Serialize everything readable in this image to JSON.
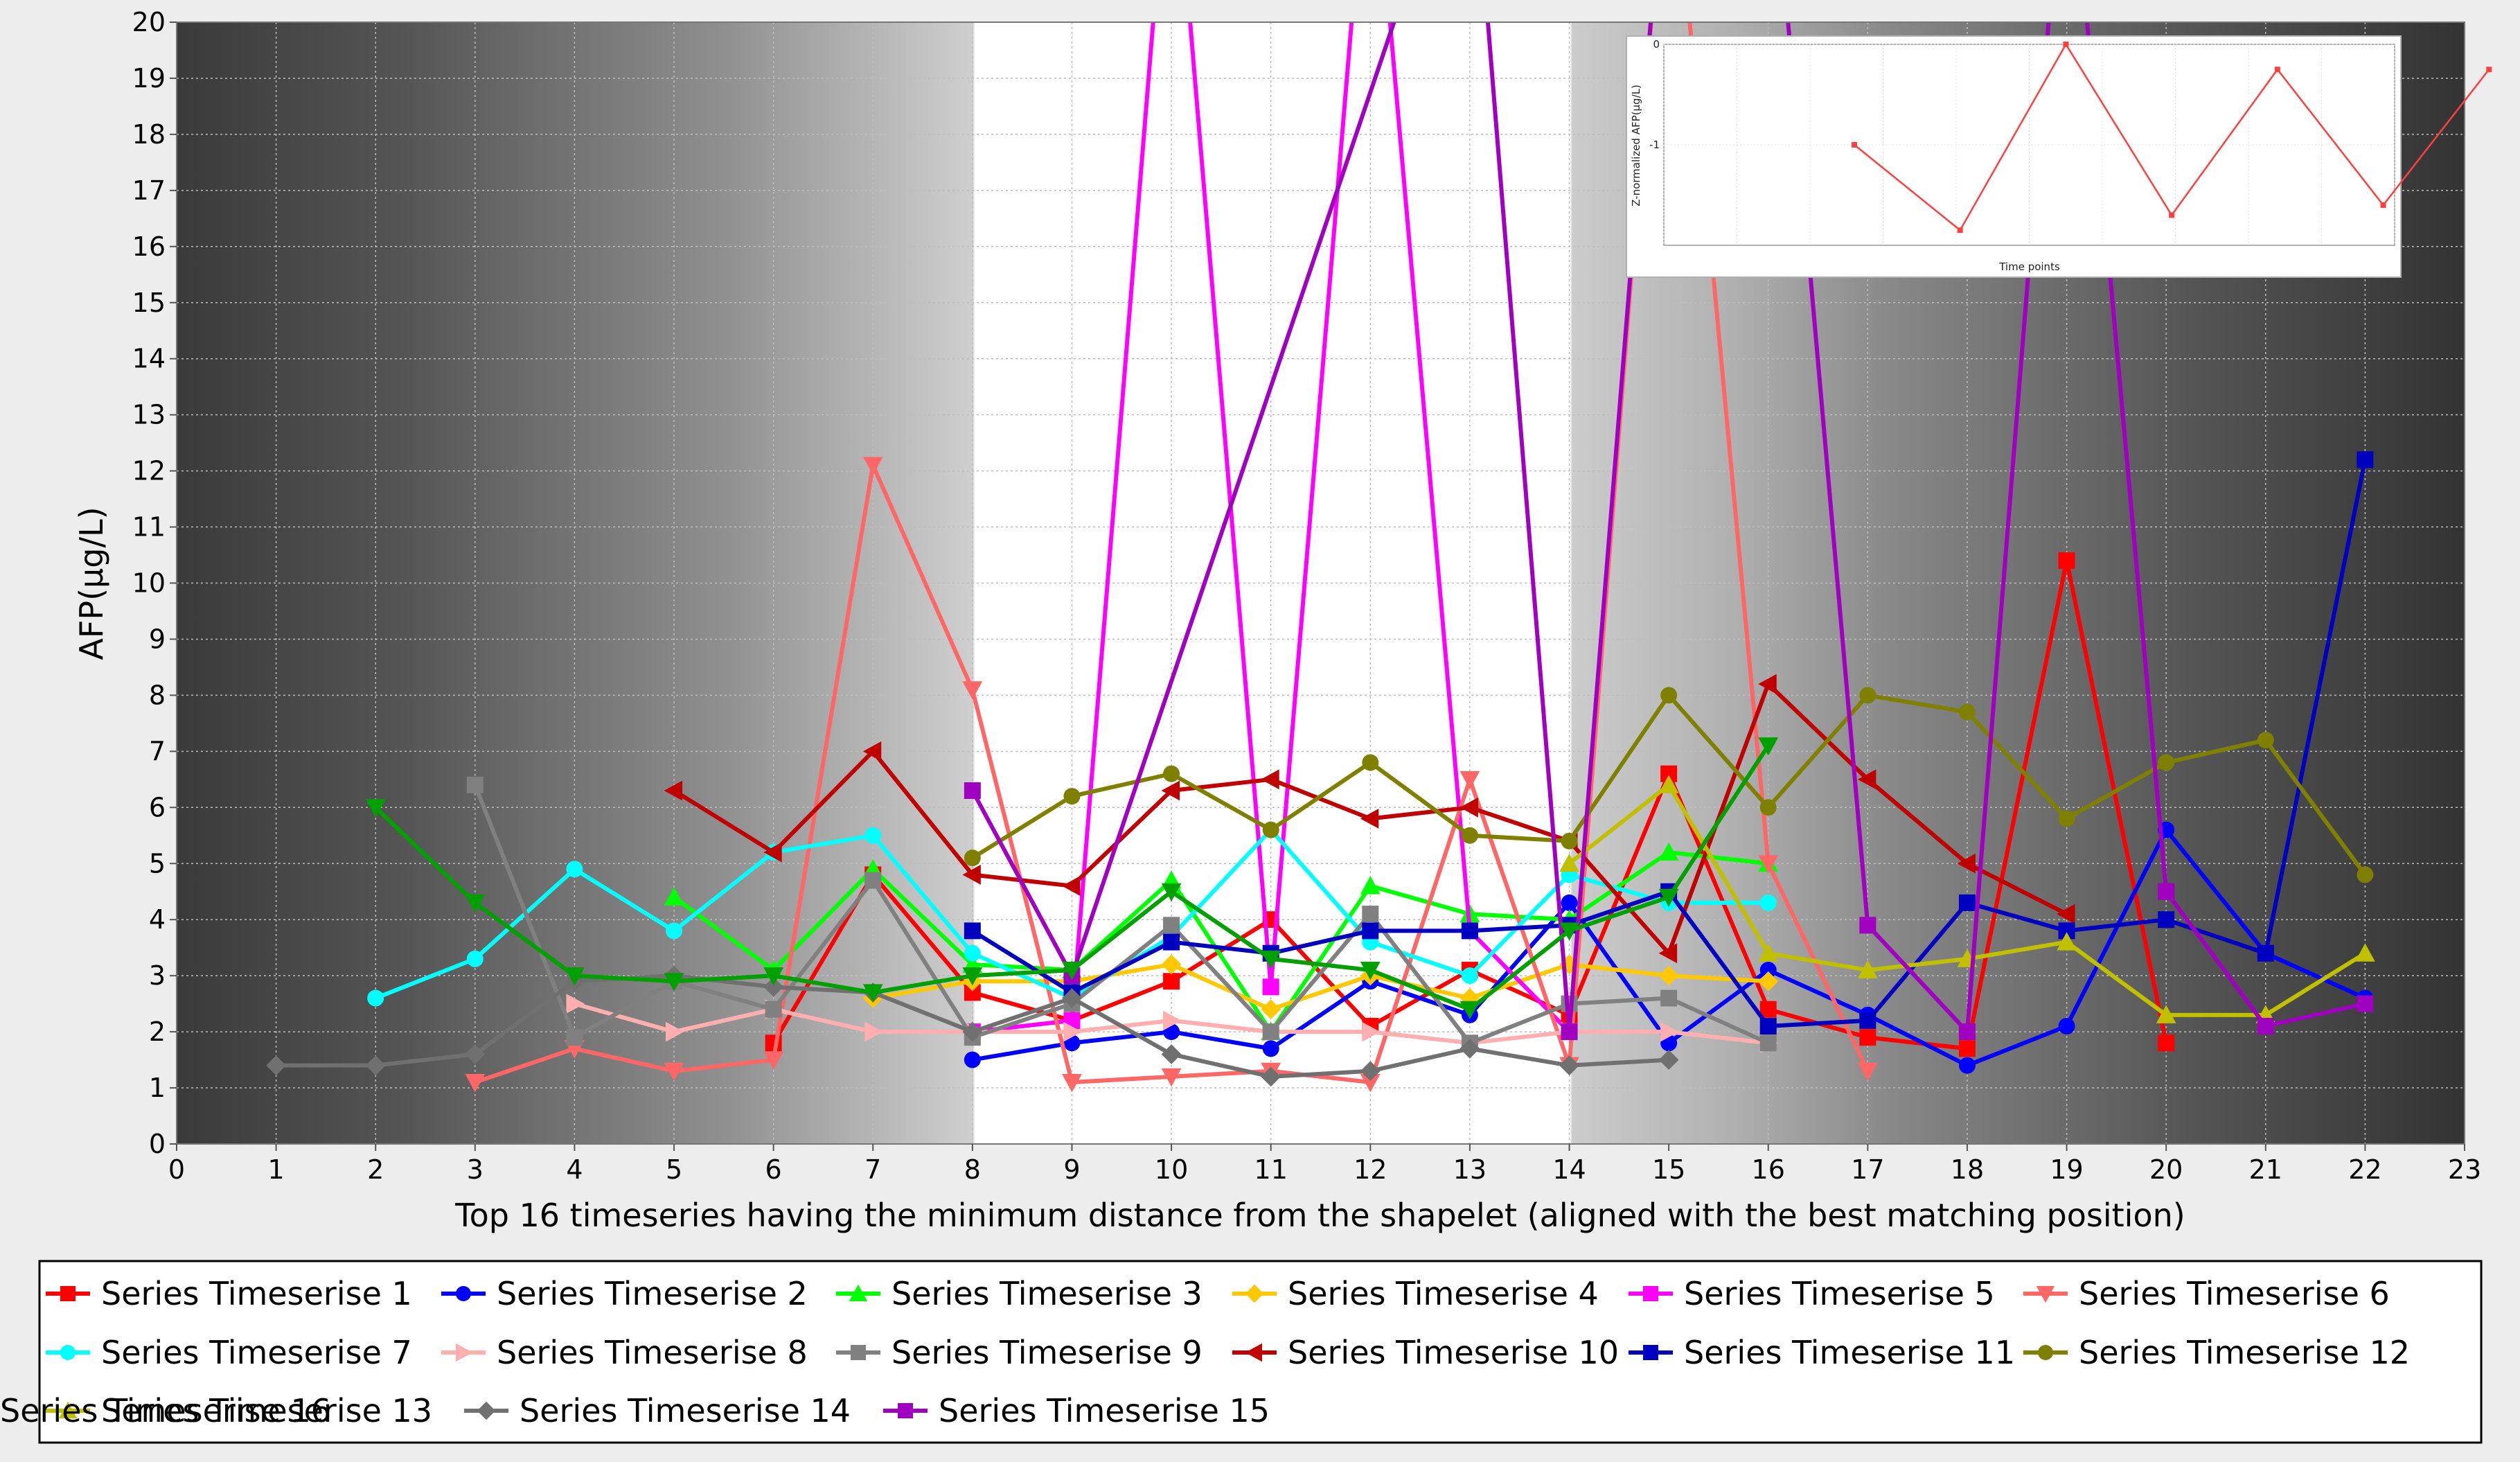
{
  "chart_data": [
    {
      "type": "line",
      "title": "",
      "xlabel": "Top 16 timeseries having the minimum distance from the shapelet (aligned with the best matching position)",
      "ylabel": "AFP(µg/L)",
      "xlim": [
        0,
        23
      ],
      "ylim": [
        0,
        20
      ],
      "x_ticks": [
        "0",
        "1",
        "2",
        "3",
        "4",
        "5",
        "6",
        "7",
        "8",
        "9",
        "10",
        "11",
        "12",
        "13",
        "14",
        "15",
        "16",
        "17",
        "18",
        "19",
        "20",
        "21",
        "22",
        "23"
      ],
      "y_ticks": [
        "0",
        "1",
        "2",
        "3",
        "4",
        "5",
        "6",
        "7",
        "8",
        "9",
        "10",
        "11",
        "12",
        "13",
        "14",
        "15",
        "16",
        "17",
        "18",
        "19",
        "20"
      ],
      "grid": true,
      "highlight_region": [
        8,
        14
      ],
      "legend_position": "bottom",
      "series": [
        {
          "name": "Series Timeserise 1",
          "color": "#ff0000",
          "marker": "square",
          "x": [
            6,
            7,
            8,
            9,
            10,
            11,
            12,
            13,
            14,
            15,
            16,
            17,
            18,
            19,
            20
          ],
          "y": [
            1.8,
            4.8,
            2.7,
            2.2,
            2.9,
            4.0,
            2.1,
            3.1,
            2.3,
            6.6,
            2.4,
            1.9,
            1.7,
            10.4,
            1.8
          ]
        },
        {
          "name": "Series Timeserise 2",
          "color": "#0000ff",
          "marker": "circle",
          "x": [
            8,
            9,
            10,
            11,
            12,
            13,
            14,
            15,
            16,
            17,
            18,
            19,
            20,
            21,
            22
          ],
          "y": [
            1.5,
            1.8,
            2.0,
            1.7,
            2.9,
            2.3,
            4.3,
            1.8,
            3.1,
            2.3,
            1.4,
            2.1,
            5.6,
            3.4,
            2.6
          ]
        },
        {
          "name": "Series Timeserise 3",
          "color": "#00ff00",
          "marker": "triangle-up",
          "x": [
            5,
            6,
            7,
            8,
            9,
            10,
            11,
            12,
            13,
            14,
            15,
            16
          ],
          "y": [
            4.4,
            3.1,
            4.9,
            3.2,
            3.1,
            4.7,
            2.0,
            4.6,
            4.1,
            4.0,
            5.2,
            5.0
          ]
        },
        {
          "name": "Series Timeserise 4",
          "color": "#ffc800",
          "marker": "diamond",
          "x": [
            7,
            8,
            9,
            10,
            11,
            12,
            13,
            14,
            15,
            16
          ],
          "y": [
            2.6,
            2.9,
            2.9,
            3.2,
            2.4,
            3.0,
            2.6,
            3.2,
            3.0,
            2.9
          ]
        },
        {
          "name": "Series Timeserise 5",
          "color": "#ff00ff",
          "marker": "square",
          "x": [
            8,
            9,
            10,
            11,
            12,
            13,
            14
          ],
          "y": [
            2.0,
            2.2,
            24,
            2.8,
            24,
            3.8,
            2.0
          ]
        },
        {
          "name": "Series Timeserise 6",
          "color": "#ff6666",
          "marker": "triangle-down",
          "x": [
            3,
            4,
            5,
            6,
            7,
            8,
            9,
            10,
            11,
            12,
            13,
            14,
            15,
            16,
            17
          ],
          "y": [
            1.1,
            1.7,
            1.3,
            1.5,
            12.1,
            8.1,
            1.1,
            1.2,
            1.3,
            1.1,
            6.5,
            1.4,
            24,
            5.0,
            1.3
          ]
        },
        {
          "name": "Series Timeserise 7",
          "color": "#00ffff",
          "marker": "circle",
          "x": [
            2,
            3,
            4,
            5,
            6,
            7,
            8,
            9,
            10,
            11,
            12,
            13,
            14,
            15,
            16
          ],
          "y": [
            2.6,
            3.3,
            4.9,
            3.8,
            5.2,
            5.5,
            3.4,
            2.6,
            3.7,
            5.6,
            3.6,
            3.0,
            4.8,
            4.3,
            4.3
          ]
        },
        {
          "name": "Series Timeserise 8",
          "color": "#ffafaf",
          "marker": "triangle-right",
          "x": [
            4,
            5,
            6,
            7,
            8,
            9,
            10,
            11,
            12,
            13,
            14,
            15,
            16
          ],
          "y": [
            2.5,
            2.0,
            2.4,
            2.0,
            2.0,
            2.0,
            2.2,
            2.0,
            2.0,
            1.8,
            2.0,
            2.0,
            1.8
          ]
        },
        {
          "name": "Series Timeserise 9",
          "color": "#808080",
          "marker": "square",
          "x": [
            3,
            4,
            5,
            6,
            7,
            8,
            9,
            10,
            11,
            12,
            13,
            14,
            15,
            16
          ],
          "y": [
            6.4,
            1.9,
            2.9,
            2.4,
            4.7,
            1.9,
            2.5,
            3.9,
            2.0,
            4.1,
            1.8,
            2.5,
            2.6,
            1.8
          ]
        },
        {
          "name": "Series Timeserise 10",
          "color": "#c00000",
          "marker": "triangle-left",
          "x": [
            5,
            6,
            7,
            8,
            9,
            10,
            11,
            12,
            13,
            14,
            15,
            16,
            17,
            18,
            19
          ],
          "y": [
            6.3,
            5.2,
            7.0,
            4.8,
            4.6,
            6.3,
            6.5,
            5.8,
            6.0,
            5.4,
            3.4,
            8.2,
            6.5,
            5.0,
            4.1
          ]
        },
        {
          "name": "Series Timeserise 11",
          "color": "#0000c0",
          "marker": "square",
          "x": [
            8,
            9,
            10,
            11,
            12,
            13,
            14,
            15,
            16,
            17,
            18,
            19,
            20,
            21,
            22
          ],
          "y": [
            3.8,
            2.7,
            3.6,
            3.4,
            3.8,
            3.8,
            3.9,
            4.5,
            2.1,
            2.2,
            4.3,
            3.8,
            4.0,
            3.4,
            12.2
          ]
        },
        {
          "name": "Series Timeserise 12",
          "color": "#808000",
          "marker": "circle",
          "x": [
            8,
            9,
            10,
            11,
            12,
            13,
            14,
            15,
            16,
            17,
            18,
            19,
            20,
            21,
            22
          ],
          "y": [
            5.1,
            6.2,
            6.6,
            5.6,
            6.8,
            5.5,
            5.4,
            8.0,
            6.0,
            8.0,
            7.7,
            5.8,
            6.8,
            7.2,
            4.8
          ]
        },
        {
          "name": "Series Timeserise 13",
          "color": "#c0c000",
          "marker": "triangle-up",
          "x": [
            14,
            15,
            16,
            17,
            18,
            19,
            20,
            21,
            22
          ],
          "y": [
            5.0,
            6.4,
            3.4,
            3.1,
            3.3,
            3.6,
            2.3,
            2.3,
            3.4
          ]
        },
        {
          "name": "Series Timeserise 14",
          "color": "#707070",
          "marker": "diamond",
          "x": [
            1,
            2,
            3,
            4,
            5,
            6,
            7,
            8,
            9,
            10,
            11,
            12,
            13,
            14,
            15
          ],
          "y": [
            1.4,
            1.4,
            1.6,
            2.9,
            3.0,
            2.8,
            2.7,
            2.0,
            2.6,
            1.6,
            1.2,
            1.3,
            1.7,
            1.4,
            1.5
          ]
        },
        {
          "name": "Series Timeserise 15",
          "color": "#a000c0",
          "marker": "square",
          "x": [
            8,
            9,
            13,
            14,
            15,
            16,
            17,
            18,
            19,
            20,
            21,
            22
          ],
          "y": [
            6.3,
            3.0,
            24,
            2.0,
            24,
            24,
            3.9,
            2.0,
            24,
            4.5,
            2.1,
            2.5
          ]
        },
        {
          "name": "Series Timeserise 16",
          "color": "#00a000",
          "marker": "triangle-down",
          "x": [
            2,
            3,
            4,
            5,
            6,
            7,
            8,
            9,
            10,
            11,
            12,
            13,
            14,
            15,
            16
          ],
          "y": [
            6.0,
            4.3,
            3.0,
            2.9,
            3.0,
            2.7,
            3.0,
            3.1,
            4.5,
            3.3,
            3.1,
            2.4,
            3.8,
            4.4,
            7.1
          ]
        }
      ]
    },
    {
      "type": "line",
      "title": "",
      "xlabel": "Time points",
      "ylabel": "Z-normalized AFP(µg/L)",
      "y_ticks": [
        "0",
        "-1"
      ],
      "series": [
        {
          "name": "",
          "color": "#ff4040",
          "marker": "square",
          "x": [
            1,
            2,
            3,
            4,
            5,
            6,
            7
          ],
          "y": [
            -1.0,
            -1.85,
            0.0,
            -1.7,
            -0.25,
            -1.6,
            -0.25
          ]
        }
      ]
    }
  ]
}
